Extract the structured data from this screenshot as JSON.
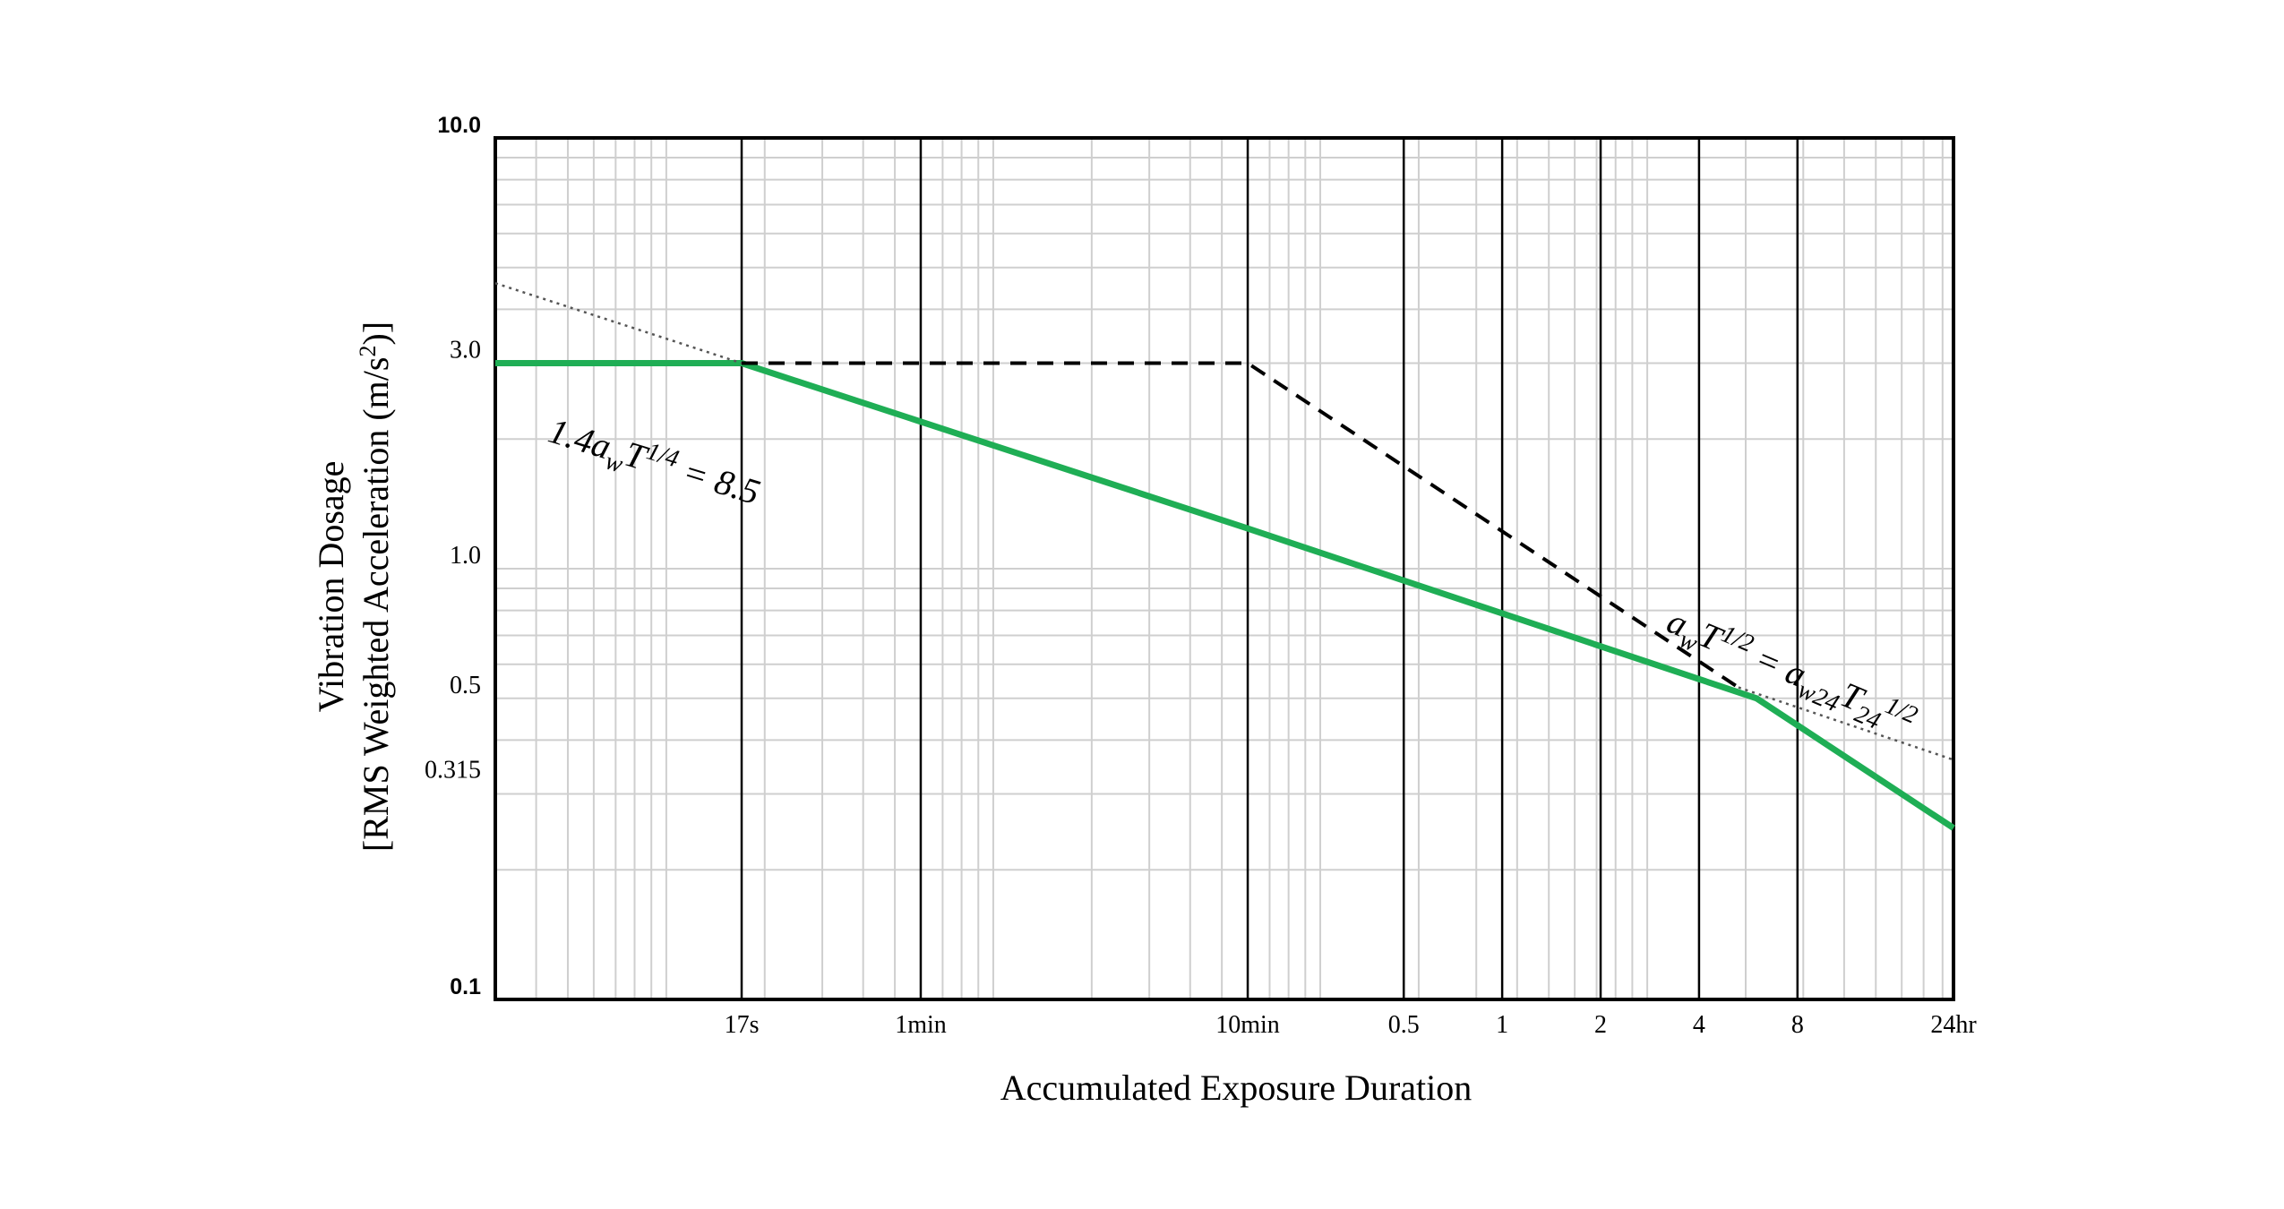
{
  "chart_data": {
    "type": "line",
    "x_scale": "log",
    "y_scale": "log",
    "x_unit": "seconds",
    "xlim": [
      3,
      86400
    ],
    "ylim": [
      0.1,
      10.0
    ],
    "grid": true,
    "xlabel": "Accumulated Exposure Duration",
    "ylabel_line1": "Vibration Dosage",
    "ylabel_line2_prefix": "[RMS Weighted Acceleration (m/s",
    "ylabel_line2_sup": "2",
    "ylabel_line2_suffix": ")]",
    "y_ticks": [
      {
        "value": 10.0,
        "label": "10.0",
        "style": "bold"
      },
      {
        "value": 3.0,
        "label": "3.0",
        "style": "serif"
      },
      {
        "value": 1.0,
        "label": "1.0",
        "style": "serif"
      },
      {
        "value": 0.5,
        "label": "0.5",
        "style": "serif"
      },
      {
        "value": 0.315,
        "label": "0.315",
        "style": "serif"
      },
      {
        "value": 0.1,
        "label": "0.1",
        "style": "bold"
      }
    ],
    "x_ticks": [
      {
        "value": 17,
        "label": "17s"
      },
      {
        "value": 60,
        "label": "1min"
      },
      {
        "value": 600,
        "label": "10min"
      },
      {
        "value": 1800,
        "label": "0.5"
      },
      {
        "value": 3600,
        "label": "1"
      },
      {
        "value": 7200,
        "label": "2"
      },
      {
        "value": 14400,
        "label": "4"
      },
      {
        "value": 28800,
        "label": "8"
      },
      {
        "value": 86400,
        "label": "24hr"
      }
    ],
    "series": [
      {
        "style": "solid",
        "color": "#1fae55",
        "x": [
          3,
          17,
          600,
          21600,
          86400
        ],
        "y": [
          3.0,
          3.0,
          1.24,
          0.5,
          0.25
        ]
      },
      {
        "style": "dashed",
        "color": "#000000",
        "x": [
          17,
          600,
          19000
        ],
        "y": [
          3.0,
          3.0,
          0.53
        ]
      },
      {
        "style": "dotted",
        "color": "#555555",
        "x": [
          3,
          17
        ],
        "y": [
          4.6,
          3.0
        ]
      },
      {
        "style": "dotted",
        "color": "#555555",
        "x": [
          19000,
          86400
        ],
        "y": [
          0.53,
          0.36
        ]
      }
    ],
    "annotations": [
      {
        "id": "formula1",
        "base": "1.4a",
        "sub": "w",
        "mid": "T",
        "sup": "1/4",
        "tail": " = 8.5",
        "at": [
          4.3,
          1.98
        ],
        "rotation": 17
      },
      {
        "id": "formula2",
        "base": "a",
        "sub": "w",
        "mid": "T",
        "sup": "1/2",
        "tail": " = a",
        "sub2": "w24",
        "mid2": "T",
        "sub3": "24",
        "sup2": "1/2",
        "at": [
          11300,
          0.72
        ],
        "rotation": 23
      }
    ]
  }
}
